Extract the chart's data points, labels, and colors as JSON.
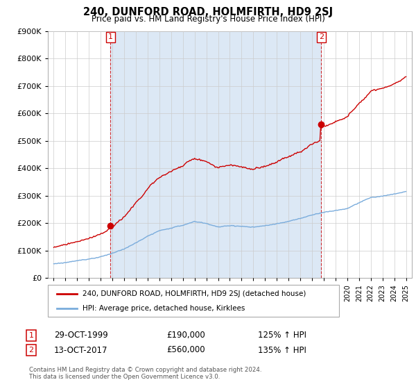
{
  "title": "240, DUNFORD ROAD, HOLMFIRTH, HD9 2SJ",
  "subtitle": "Price paid vs. HM Land Registry's House Price Index (HPI)",
  "legend_line1": "240, DUNFORD ROAD, HOLMFIRTH, HD9 2SJ (detached house)",
  "legend_line2": "HPI: Average price, detached house, Kirklees",
  "footer": "Contains HM Land Registry data © Crown copyright and database right 2024.\nThis data is licensed under the Open Government Licence v3.0.",
  "transaction1_label": "1",
  "transaction1_date": "29-OCT-1999",
  "transaction1_price": "£190,000",
  "transaction1_hpi": "125% ↑ HPI",
  "transaction2_label": "2",
  "transaction2_date": "13-OCT-2017",
  "transaction2_price": "£560,000",
  "transaction2_hpi": "135% ↑ HPI",
  "red_color": "#cc0000",
  "blue_color": "#7aacdc",
  "shade_color": "#dce8f5",
  "point1_x": 1999.83,
  "point1_y": 190000,
  "point2_x": 2017.79,
  "point2_y": 560000,
  "ylim": [
    0,
    900000
  ],
  "xlim": [
    1994.5,
    2025.5
  ],
  "bg_color": "#ffffff",
  "grid_color": "#cccccc"
}
